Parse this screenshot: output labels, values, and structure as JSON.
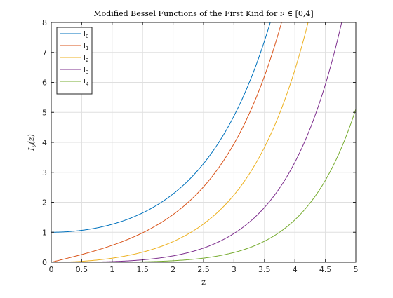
{
  "chart_data": {
    "type": "line",
    "title": "Modified Bessel Functions of the First Kind for ν ∈ [0,4]",
    "xlabel": "z",
    "ylabel": "I_ν(z)",
    "xlim": [
      0,
      5
    ],
    "ylim": [
      0,
      8
    ],
    "x_ticks": [
      "0",
      "0.5",
      "1",
      "1.5",
      "2",
      "2.5",
      "3",
      "3.5",
      "4",
      "4.5",
      "5"
    ],
    "y_ticks": [
      "0",
      "1",
      "2",
      "3",
      "4",
      "5",
      "6",
      "7",
      "8"
    ],
    "grid": true,
    "legend_position": "top-left",
    "series": [
      {
        "name": "I_0",
        "label_base": "I",
        "label_sub": "0",
        "order": 0,
        "color": "#0072bd"
      },
      {
        "name": "I_1",
        "label_base": "I",
        "label_sub": "1",
        "order": 1,
        "color": "#d95319"
      },
      {
        "name": "I_2",
        "label_base": "I",
        "label_sub": "2",
        "order": 2,
        "color": "#edb120"
      },
      {
        "name": "I_3",
        "label_base": "I",
        "label_sub": "3",
        "order": 3,
        "color": "#7e2f8e"
      },
      {
        "name": "I_4",
        "label_base": "I",
        "label_sub": "4",
        "order": 4,
        "color": "#77ac30"
      }
    ],
    "x": [
      0,
      0.25,
      0.5,
      0.75,
      1,
      1.25,
      1.5,
      1.75,
      2,
      2.25,
      2.5,
      2.75,
      3,
      3.25,
      3.5,
      3.75,
      4,
      4.25,
      4.5,
      4.75,
      5
    ]
  }
}
